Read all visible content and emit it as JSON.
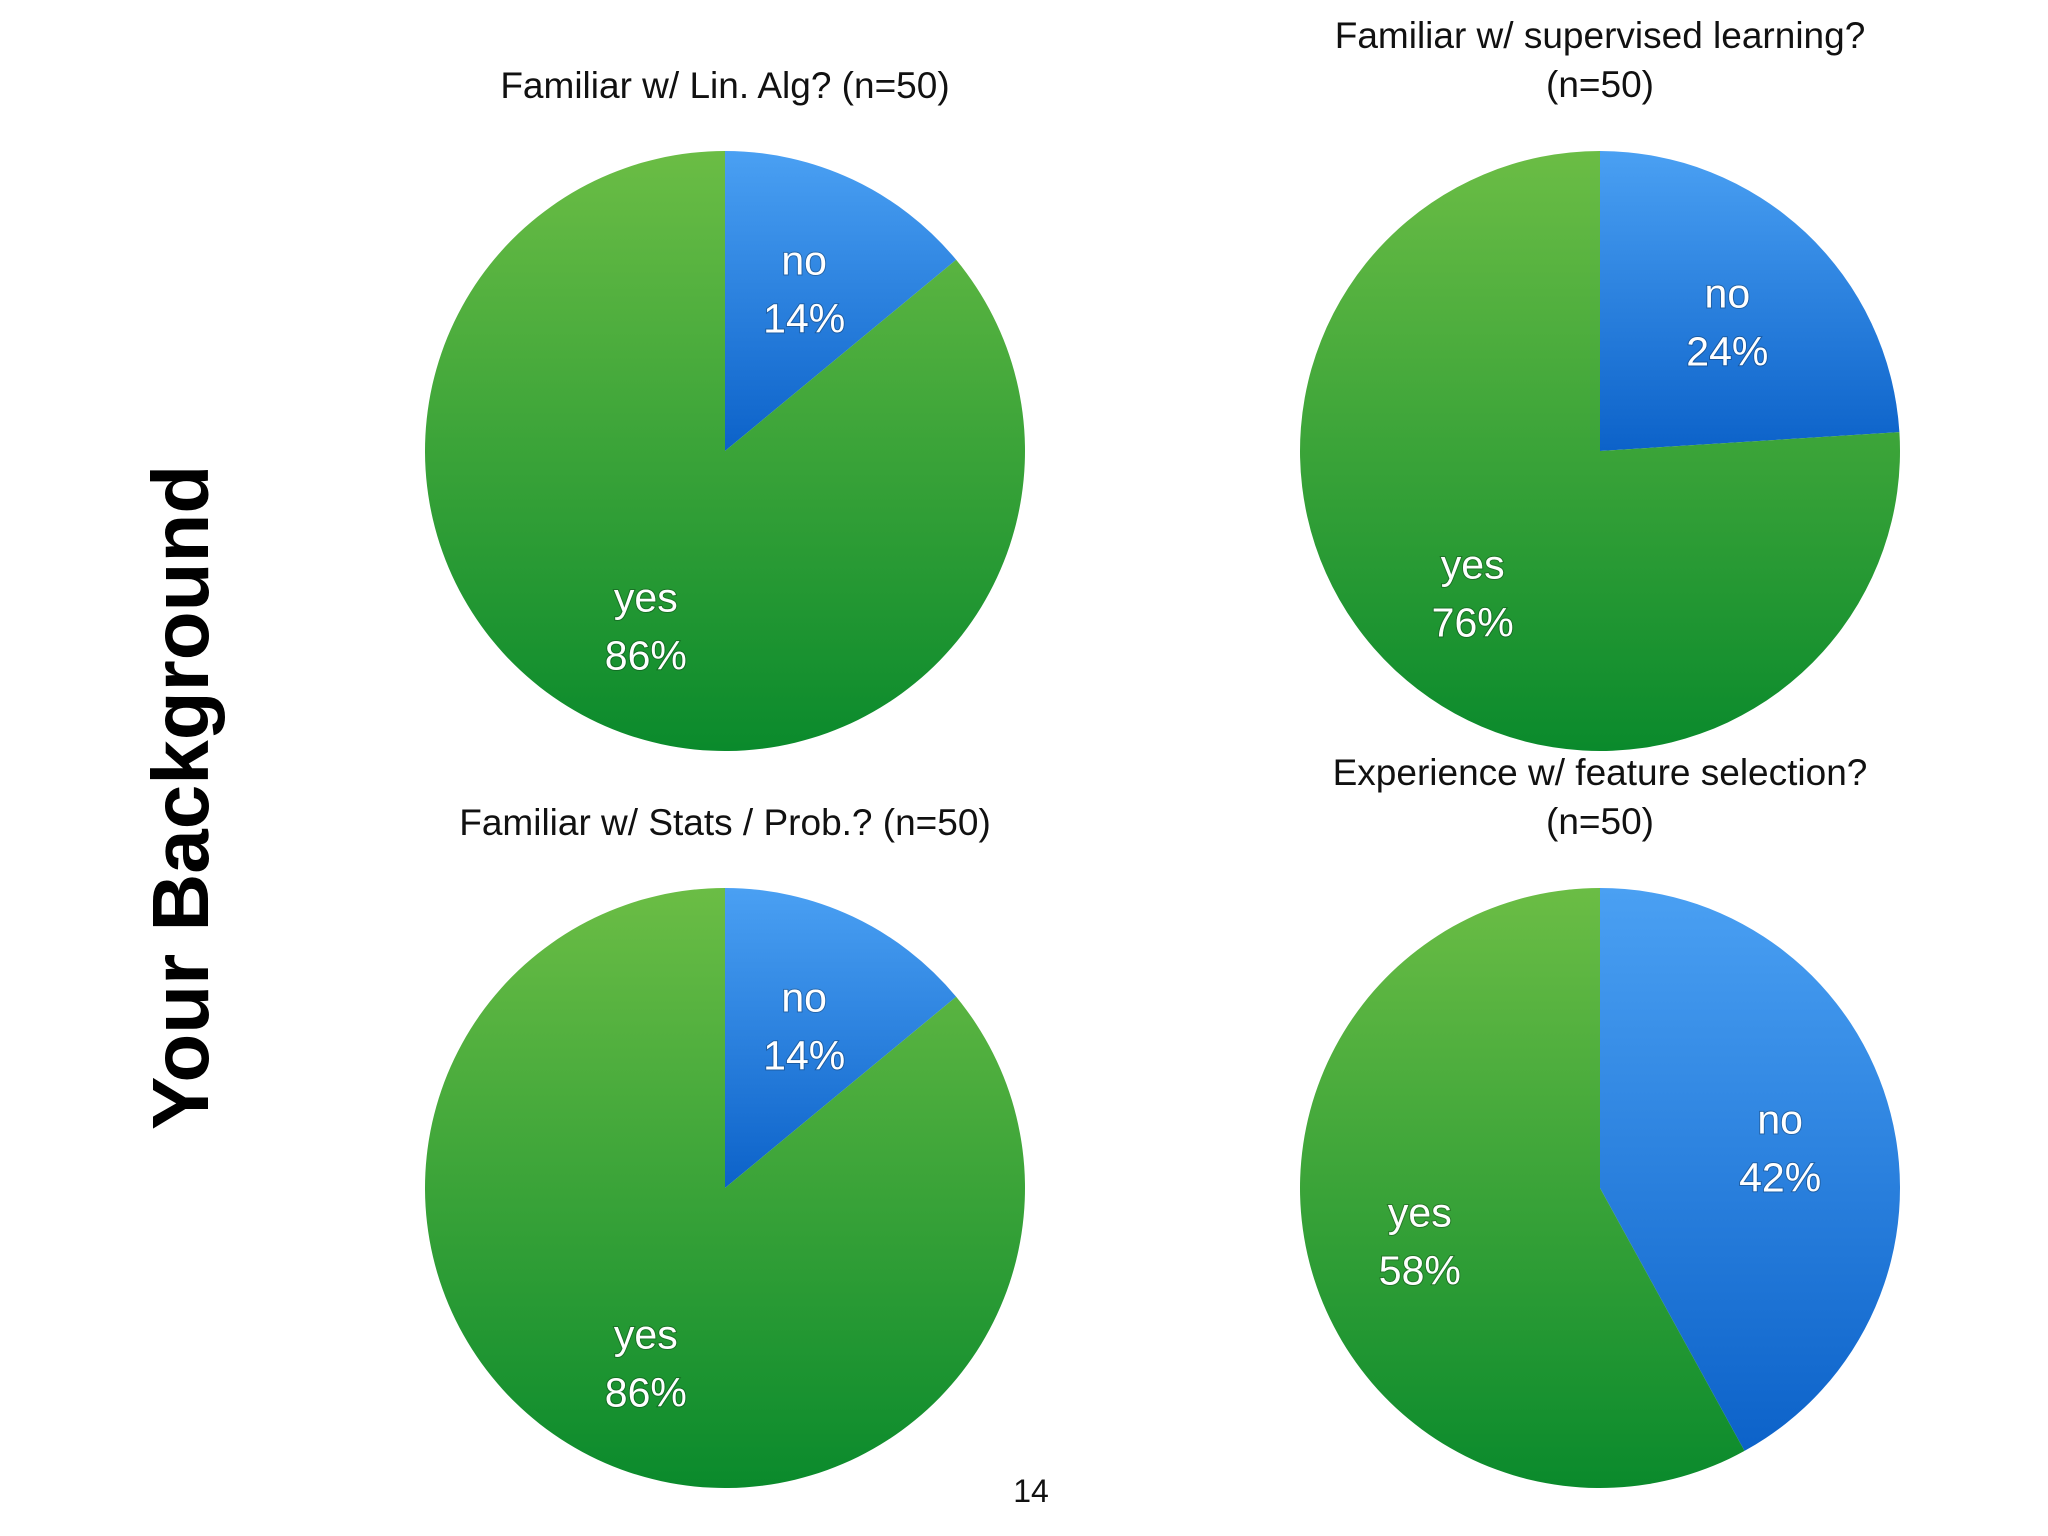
{
  "slide_title": "Your Background",
  "page_number": "14",
  "colors": {
    "yes_light": "#6bbd45",
    "yes_dark": "#0a8a2c",
    "no_light": "#4aa0f3",
    "no_dark": "#0c62c9"
  },
  "chart_data": [
    {
      "type": "pie",
      "title_lines": [
        "Familiar w/ Lin. Alg? (n=50)"
      ],
      "slices": [
        {
          "label": "no",
          "value": 14,
          "display": "14%",
          "color": "blue"
        },
        {
          "label": "yes",
          "value": 86,
          "display": "86%",
          "color": "green"
        }
      ]
    },
    {
      "type": "pie",
      "title_lines": [
        "Familiar w/ supervised learning?",
        "(n=50)"
      ],
      "slices": [
        {
          "label": "no",
          "value": 24,
          "display": "24%",
          "color": "blue"
        },
        {
          "label": "yes",
          "value": 76,
          "display": "76%",
          "color": "green"
        }
      ]
    },
    {
      "type": "pie",
      "title_lines": [
        "Familiar w/ Stats / Prob.? (n=50)"
      ],
      "slices": [
        {
          "label": "no",
          "value": 14,
          "display": "14%",
          "color": "blue"
        },
        {
          "label": "yes",
          "value": 86,
          "display": "86%",
          "color": "green"
        }
      ]
    },
    {
      "type": "pie",
      "title_lines": [
        "Experience w/ feature selection?",
        "(n=50)"
      ],
      "slices": [
        {
          "label": "no",
          "value": 42,
          "display": "42%",
          "color": "blue"
        },
        {
          "label": "yes",
          "value": 58,
          "display": "58%",
          "color": "green"
        }
      ]
    }
  ]
}
